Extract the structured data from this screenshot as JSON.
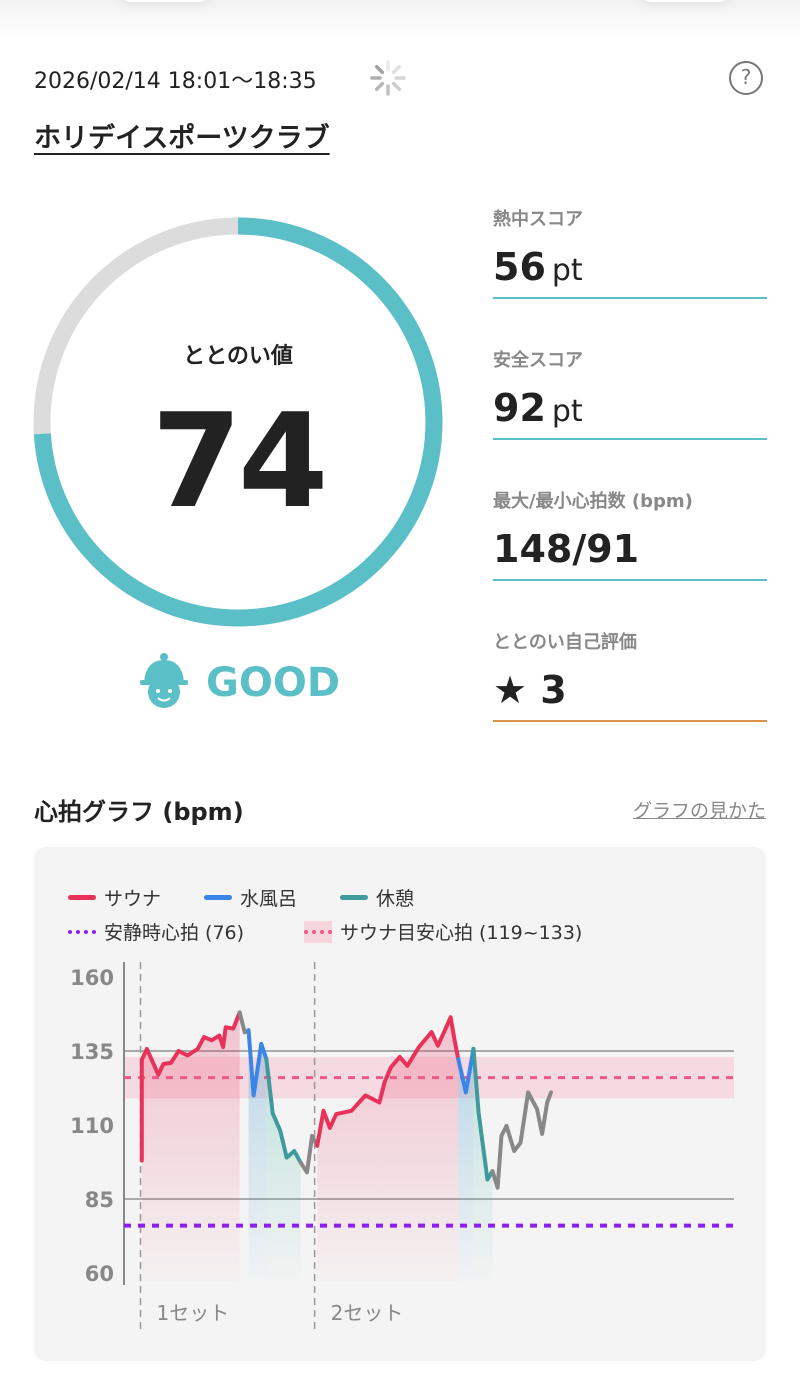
{
  "header": {
    "datetime": "2026/02/14 18:01～18:35",
    "venue": "ホリデイスポーツクラブ",
    "help_icon": "question-circle-icon",
    "help_label": "?",
    "spinner_icon": "loading-spinner-icon"
  },
  "score": {
    "label": "ととのい値",
    "value": "74",
    "progress_percent": 74,
    "grade": "GOOD",
    "ring_color": "#5bbfc7",
    "track_color": "#dcdcdc"
  },
  "stats": [
    {
      "label": "熱中スコア",
      "value": "56",
      "unit": "pt"
    },
    {
      "label": "安全スコア",
      "value": "92",
      "unit": "pt"
    },
    {
      "label": "最大/最小心拍数 (bpm)",
      "value": "148/91",
      "unit": ""
    },
    {
      "label": "ととのい自己評価",
      "value": "3",
      "unit": "",
      "icon": "star-icon"
    }
  ],
  "chart_section": {
    "title": "心拍グラフ (bpm)",
    "help_link": "グラフの見かた"
  },
  "chart_data": {
    "type": "line",
    "ylim": [
      60,
      160
    ],
    "yticks": [
      60,
      85,
      110,
      135,
      160
    ],
    "grid_lines": [
      85,
      135
    ],
    "legend": {
      "sauna": "サウナ",
      "cold": "水風呂",
      "rest": "休憩",
      "resting_hr": "安静時心拍 (76)",
      "target": "サウナ目安心拍 (119~133)"
    },
    "colors": {
      "sauna": "#e8325a",
      "cold": "#3a86e8",
      "rest": "#3e9a9c",
      "other": "#888888",
      "resting_hr": "#8a1ff0",
      "target": "#ee5a86"
    },
    "resting_hr": 76,
    "target_band": [
      119,
      133
    ],
    "target_mid": 126,
    "sets": [
      {
        "label": "1セット",
        "t": 1.3
      },
      {
        "label": "2セット",
        "t": 15.0
      }
    ],
    "segments": [
      {
        "phase": "sauna",
        "points": [
          [
            1.4,
            98
          ],
          [
            1.4,
            132
          ],
          [
            1.8,
            135.7
          ],
          [
            2.7,
            127
          ],
          [
            3.1,
            130.6
          ],
          [
            3.7,
            131
          ],
          [
            4.3,
            135
          ],
          [
            5.0,
            133.5
          ],
          [
            5.8,
            135.7
          ],
          [
            6.3,
            139.7
          ],
          [
            6.9,
            138.6
          ],
          [
            7.5,
            140.2
          ],
          [
            7.8,
            136.3
          ],
          [
            8.0,
            143
          ],
          [
            8.6,
            142.6
          ],
          [
            9.1,
            148
          ]
        ]
      },
      {
        "phase": "other",
        "points": [
          [
            9.1,
            148
          ],
          [
            9.5,
            141.3
          ],
          [
            9.8,
            142
          ]
        ]
      },
      {
        "phase": "cold",
        "points": [
          [
            9.8,
            142
          ],
          [
            10.2,
            120
          ],
          [
            10.8,
            137.4
          ],
          [
            11.2,
            132.3
          ]
        ]
      },
      {
        "phase": "rest",
        "points": [
          [
            11.2,
            132.3
          ],
          [
            11.7,
            114
          ],
          [
            12.3,
            108
          ],
          [
            12.8,
            99
          ],
          [
            13.4,
            101.2
          ],
          [
            13.9,
            97.3
          ]
        ]
      },
      {
        "phase": "other",
        "points": [
          [
            13.9,
            97.3
          ],
          [
            14.4,
            94
          ],
          [
            14.8,
            106.3
          ],
          [
            15.2,
            103
          ]
        ]
      },
      {
        "phase": "sauna",
        "points": [
          [
            15.2,
            103
          ],
          [
            15.7,
            114.8
          ],
          [
            16.2,
            109
          ],
          [
            16.7,
            113.7
          ],
          [
            17.9,
            114.8
          ],
          [
            19.0,
            120
          ],
          [
            20.1,
            117.6
          ],
          [
            20.5,
            124.4
          ],
          [
            21.0,
            129.5
          ],
          [
            21.7,
            133
          ],
          [
            22.3,
            130
          ],
          [
            23.2,
            136.3
          ],
          [
            24.2,
            141.4
          ],
          [
            24.7,
            136.8
          ],
          [
            25.3,
            142.5
          ],
          [
            25.7,
            146.4
          ],
          [
            26.0,
            139
          ],
          [
            26.3,
            132.3
          ]
        ]
      },
      {
        "phase": "cold",
        "points": [
          [
            26.3,
            132.3
          ],
          [
            26.9,
            121
          ],
          [
            27.5,
            135.7
          ]
        ]
      },
      {
        "phase": "rest",
        "points": [
          [
            27.5,
            135.7
          ],
          [
            27.9,
            114.2
          ],
          [
            28.6,
            91.6
          ],
          [
            29.0,
            94.4
          ]
        ]
      },
      {
        "phase": "other",
        "points": [
          [
            29.0,
            94.4
          ],
          [
            29.4,
            88.8
          ],
          [
            29.7,
            106.3
          ],
          [
            30.1,
            109.7
          ],
          [
            30.7,
            101.2
          ],
          [
            31.2,
            104
          ],
          [
            31.8,
            121
          ],
          [
            32.5,
            115.4
          ],
          [
            32.9,
            107
          ],
          [
            33.3,
            117.6
          ],
          [
            33.6,
            121
          ]
        ]
      }
    ]
  }
}
